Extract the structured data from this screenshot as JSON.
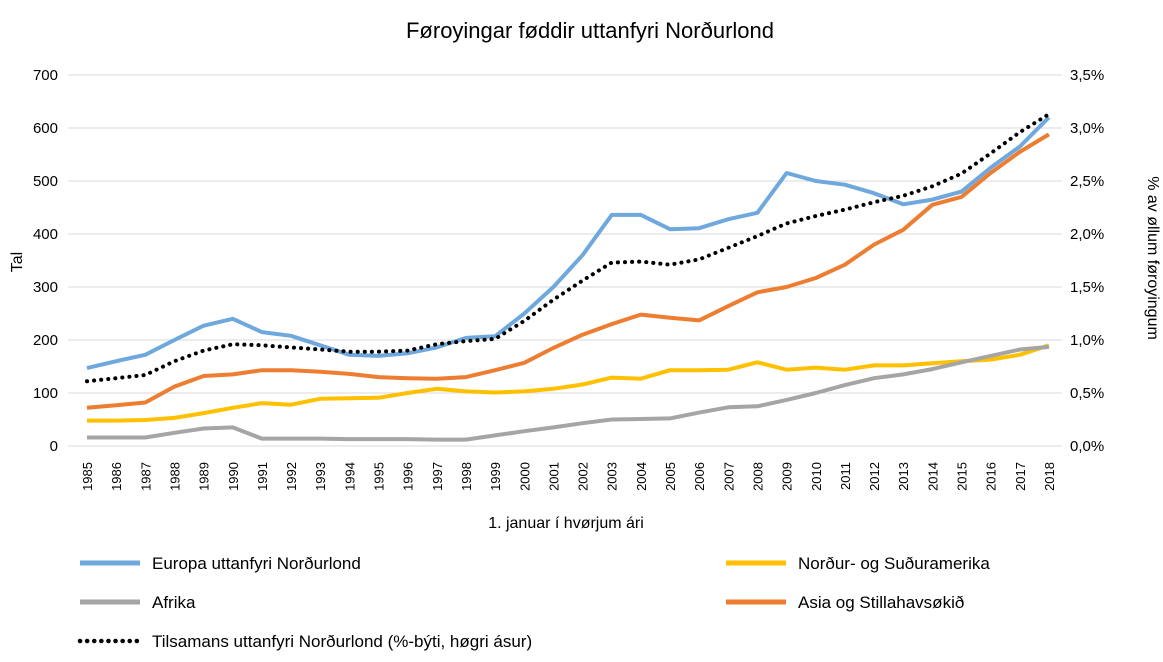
{
  "chart_data": {
    "type": "line",
    "title": "Føroyingar føddir uttanfyri Norðurlond",
    "xlabel": "1. januar í hvørjum ári",
    "ylabel": "Tal",
    "y2label": "% av øllum føroyingum",
    "ylim": [
      0,
      700
    ],
    "y2lim": [
      0,
      3.5
    ],
    "yticks": [
      "0",
      "100",
      "200",
      "300",
      "400",
      "500",
      "600",
      "700"
    ],
    "y2ticks": [
      "0,0%",
      "0,5%",
      "1,0%",
      "1,5%",
      "2,0%",
      "2,5%",
      "3,0%",
      "3,5%"
    ],
    "categories": [
      "1985",
      "1986",
      "1987",
      "1988",
      "1989",
      "1990",
      "1991",
      "1992",
      "1993",
      "1994",
      "1995",
      "1996",
      "1997",
      "1998",
      "1999",
      "2000",
      "2001",
      "2002",
      "2003",
      "2004",
      "2005",
      "2006",
      "2007",
      "2008",
      "2009",
      "2010",
      "2011",
      "2012",
      "2013",
      "2014",
      "2015",
      "2016",
      "2017",
      "2018"
    ],
    "grid": true,
    "legend_position": "bottom",
    "series": [
      {
        "name": "Europa uttanfyri Norðurlond",
        "color": "#6fa8dc",
        "axis": "left",
        "style": "solid",
        "values": [
          147,
          160,
          172,
          200,
          227,
          240,
          215,
          208,
          190,
          172,
          170,
          175,
          186,
          204,
          207,
          250,
          300,
          360,
          436,
          436,
          409,
          411,
          428,
          440,
          515,
          500,
          493,
          477,
          456,
          465,
          480,
          525,
          565,
          620
        ]
      },
      {
        "name": "Norður- og Suðuramerika",
        "color": "#ffc000",
        "axis": "left",
        "style": "solid",
        "values": [
          48,
          48,
          49,
          53,
          62,
          72,
          81,
          78,
          89,
          90,
          91,
          100,
          108,
          103,
          101,
          103,
          108,
          116,
          129,
          127,
          143,
          143,
          144,
          158,
          144,
          148,
          144,
          152,
          152,
          156,
          160,
          163,
          172,
          190
        ]
      },
      {
        "name": "Afrika",
        "color": "#a5a5a5",
        "axis": "left",
        "style": "solid",
        "values": [
          16,
          16,
          16,
          25,
          33,
          35,
          14,
          14,
          14,
          13,
          13,
          13,
          12,
          12,
          20,
          28,
          35,
          43,
          50,
          51,
          52,
          63,
          73,
          75,
          87,
          100,
          115,
          128,
          135,
          145,
          158,
          170,
          182,
          187
        ]
      },
      {
        "name": "Asia og Stillahavsøkið",
        "color": "#ed7d31",
        "axis": "left",
        "style": "solid",
        "values": [
          72,
          77,
          82,
          112,
          132,
          135,
          143,
          143,
          140,
          136,
          130,
          128,
          127,
          130,
          143,
          157,
          185,
          210,
          230,
          248,
          242,
          237,
          264,
          290,
          300,
          317,
          342,
          380,
          408,
          455,
          470,
          515,
          555,
          588
        ]
      },
      {
        "name": "Tilsamans uttanfyri Norðurlond (%-býti, høgri ásur)",
        "color": "#000000",
        "axis": "right",
        "style": "dotted",
        "values": [
          0.61,
          0.64,
          0.67,
          0.8,
          0.9,
          0.96,
          0.95,
          0.93,
          0.91,
          0.89,
          0.89,
          0.9,
          0.96,
          0.99,
          1.01,
          1.18,
          1.38,
          1.56,
          1.73,
          1.74,
          1.71,
          1.76,
          1.87,
          1.98,
          2.1,
          2.17,
          2.23,
          2.3,
          2.36,
          2.45,
          2.57,
          2.76,
          2.96,
          3.13
        ]
      }
    ]
  }
}
